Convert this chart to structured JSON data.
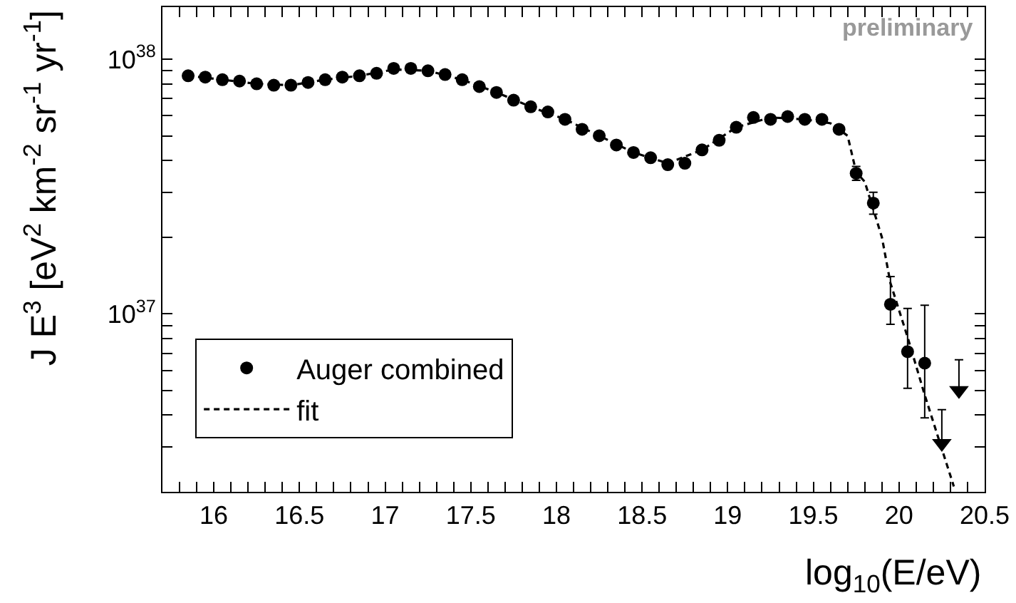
{
  "chart_data": {
    "type": "scatter",
    "xlabel": "log$_{10}$(E/eV)",
    "ylabel": "J E$^{3}$ [eV$^{2}$ km$^{-2}$ sr$^{-1}$ yr$^{-1}$]",
    "annotations": [
      "preliminary"
    ],
    "log": "y",
    "xlim": [
      15.7,
      20.5
    ],
    "ylim": [
      2e+36,
      1.6e+38
    ],
    "xticks": [
      {
        "value": 15.7,
        "label": null
      },
      {
        "value": 15.8,
        "label": null
      },
      {
        "value": 15.9,
        "label": null
      },
      16,
      {
        "value": 16.1,
        "label": null
      },
      {
        "value": 16.2,
        "label": null
      },
      {
        "value": 16.3,
        "label": null
      },
      {
        "value": 16.4,
        "label": null
      },
      16.5,
      {
        "value": 16.6,
        "label": null
      },
      {
        "value": 16.7,
        "label": null
      },
      {
        "value": 16.8,
        "label": null
      },
      {
        "value": 16.9,
        "label": null
      },
      17,
      {
        "value": 17.1,
        "label": null
      },
      {
        "value": 17.2,
        "label": null
      },
      {
        "value": 17.3,
        "label": null
      },
      {
        "value": 17.4,
        "label": null
      },
      17.5,
      {
        "value": 17.6,
        "label": null
      },
      {
        "value": 17.7,
        "label": null
      },
      {
        "value": 17.8,
        "label": null
      },
      {
        "value": 17.9,
        "label": null
      },
      18,
      {
        "value": 18.1,
        "label": null
      },
      {
        "value": 18.2,
        "label": null
      },
      {
        "value": 18.3,
        "label": null
      },
      {
        "value": 18.4,
        "label": null
      },
      18.5,
      {
        "value": 18.6,
        "label": null
      },
      {
        "value": 18.7,
        "label": null
      },
      {
        "value": 18.8,
        "label": null
      },
      {
        "value": 18.9,
        "label": null
      },
      19,
      {
        "value": 19.1,
        "label": null
      },
      {
        "value": 19.2,
        "label": null
      },
      {
        "value": 19.3,
        "label": null
      },
      {
        "value": 19.4,
        "label": null
      },
      19.5,
      {
        "value": 19.6,
        "label": null
      },
      {
        "value": 19.7,
        "label": null
      },
      {
        "value": 19.8,
        "label": null
      },
      {
        "value": 19.9,
        "label": null
      },
      20,
      {
        "value": 20.1,
        "label": null
      },
      {
        "value": 20.2,
        "label": null
      },
      {
        "value": 20.3,
        "label": null
      },
      {
        "value": 20.4,
        "label": null
      },
      20.5
    ],
    "yticks": [
      {
        "value": 3e+36,
        "label": null
      },
      {
        "value": 4e+36,
        "label": null
      },
      {
        "value": 5e+36,
        "label": null
      },
      {
        "value": 6e+36,
        "label": null
      },
      {
        "value": 7e+36,
        "label": null
      },
      {
        "value": 8e+36,
        "label": null
      },
      {
        "value": 9e+36,
        "label": null
      },
      {
        "value": 1e+37,
        "label": "10$^{37}$"
      },
      {
        "value": 2e+37,
        "label": null
      },
      {
        "value": 3e+37,
        "label": null
      },
      {
        "value": 4e+37,
        "label": null
      },
      {
        "value": 5e+37,
        "label": null
      },
      {
        "value": 6e+37,
        "label": null
      },
      {
        "value": 7e+37,
        "label": null
      },
      {
        "value": 8e+37,
        "label": null
      },
      {
        "value": 9e+37,
        "label": null
      },
      {
        "value": 1e+38,
        "label": "10$^{38}$"
      }
    ],
    "legend": "bottom left",
    "series": [
      {
        "name": "Auger combined",
        "type": "scatter",
        "marker": "circle",
        "color": "#000000",
        "x": [
          15.85,
          15.95,
          16.05,
          16.15,
          16.25,
          16.35,
          16.45,
          16.55,
          16.65,
          16.75,
          16.85,
          16.95,
          17.05,
          17.15,
          17.25,
          17.35,
          17.45,
          17.55,
          17.65,
          17.75,
          17.85,
          17.95,
          18.05,
          18.15,
          18.25,
          18.35,
          18.45,
          18.55,
          18.65,
          18.75,
          18.85,
          18.95,
          19.05,
          19.15,
          19.25,
          19.35,
          19.45,
          19.55,
          19.65,
          19.75,
          19.85,
          19.95,
          20.05,
          20.15
        ],
        "values": [
          8.6e+37,
          8.5e+37,
          8.3e+37,
          8.2e+37,
          8e+37,
          7.9e+37,
          7.9e+37,
          8.1e+37,
          8.3e+37,
          8.5e+37,
          8.6e+37,
          8.8e+37,
          9.2e+37,
          9.2e+37,
          9e+37,
          8.7e+37,
          8.3e+37,
          7.8e+37,
          7.4e+37,
          6.9e+37,
          6.5e+37,
          6.2e+37,
          5.8e+37,
          5.3e+37,
          5e+37,
          4.6e+37,
          4.3e+37,
          4.1e+37,
          3.85e+37,
          3.9e+37,
          4.4e+37,
          4.8e+37,
          5.4e+37,
          5.9e+37,
          5.8e+37,
          5.95e+37,
          5.8e+37,
          5.8e+37,
          5.3e+37,
          3.56e+37,
          2.72e+37,
          1.09e+37,
          7.1e+36,
          6.4e+36
        ],
        "errors": [
          null,
          null,
          null,
          null,
          null,
          null,
          null,
          null,
          null,
          null,
          null,
          null,
          null,
          null,
          null,
          null,
          null,
          null,
          null,
          null,
          null,
          null,
          null,
          null,
          null,
          null,
          null,
          null,
          null,
          null,
          null,
          null,
          null,
          null,
          null,
          null,
          null,
          null,
          null,
          [
            3.34e+37,
            3.79e+37
          ],
          [
            2.46e+37,
            3e+37
          ],
          [
            9.1e+36,
            1.4e+37
          ],
          [
            5.1e+36,
            1.05e+37
          ],
          [
            3.9e+36,
            1.08e+37
          ]
        ]
      },
      {
        "marker": "triangle",
        "color": "#000000",
        "x": [
          20.25,
          20.35
        ],
        "values": [
          3.1e+36,
          5e+36
        ],
        "errors": [
          [
            3.1e+36,
            4.2e+36
          ],
          [
            5e+36,
            6.6e+36
          ]
        ]
      },
      {
        "name": "fit",
        "type": "line",
        "marker": "none",
        "line_style": "dashed",
        "color": "#000000",
        "x": [
          15.85,
          16.05,
          16.25,
          16.45,
          16.65,
          16.85,
          17.05,
          17.25,
          17.45,
          17.65,
          17.85,
          18.05,
          18.25,
          18.45,
          18.65,
          18.85,
          19.05,
          19.25,
          19.45,
          19.6,
          19.7,
          19.75,
          19.8,
          19.9,
          19.95,
          20.05,
          20.15,
          20.25,
          20.32
        ],
        "values": [
          8.6e+37,
          8.3e+37,
          8e+37,
          7.9e+37,
          8.3e+37,
          8.6e+37,
          9.1e+37,
          9e+37,
          8.3e+37,
          7.4e+37,
          6.5e+37,
          5.8e+37,
          5e+37,
          4.3e+37,
          3.9e+37,
          4.4e+37,
          5.4e+37,
          5.9e+37,
          5.8e+37,
          5.6e+37,
          5e+37,
          3.6e+37,
          3.3e+37,
          2e+37,
          1.32e+37,
          8.1e+36,
          4.8e+36,
          2.95e+36,
          2.1e+36
        ]
      }
    ]
  }
}
